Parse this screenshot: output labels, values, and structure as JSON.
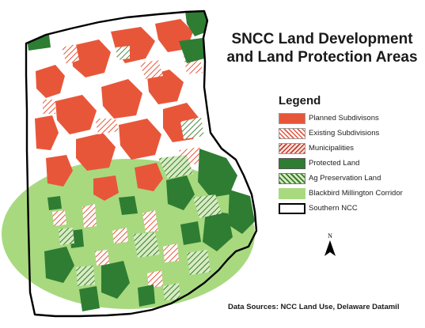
{
  "map": {
    "title_line1": "SNCC Land Development",
    "title_line2": "and Land Protection Areas",
    "legend_title": "Legend",
    "legend": [
      {
        "label": "Planned Subdivisons",
        "swatch": "planned",
        "color": "#e8563a"
      },
      {
        "label": "Existing Subdivisions",
        "swatch": "existing",
        "color": "#e8563a"
      },
      {
        "label": "Municipalities",
        "swatch": "municipal",
        "color": "#c0392b"
      },
      {
        "label": "Protected Land",
        "swatch": "protected",
        "color": "#2e7d32"
      },
      {
        "label": "Ag Preservation Land",
        "swatch": "ag",
        "color": "#4f8a3c"
      },
      {
        "label": "Blackbird Millington Corridor",
        "swatch": "corridor",
        "color": "#a8d97f"
      },
      {
        "label": "Southern NCC",
        "swatch": "boundary",
        "color": "#000000"
      }
    ],
    "north_label": "N",
    "sources": "Data Sources:  NCC Land Use, Delaware Datamil",
    "colors": {
      "planned": "#e8563a",
      "protected": "#2e7d32",
      "corridor": "#a8d97f",
      "ag": "#4f8a3c",
      "boundary": "#000000"
    }
  }
}
